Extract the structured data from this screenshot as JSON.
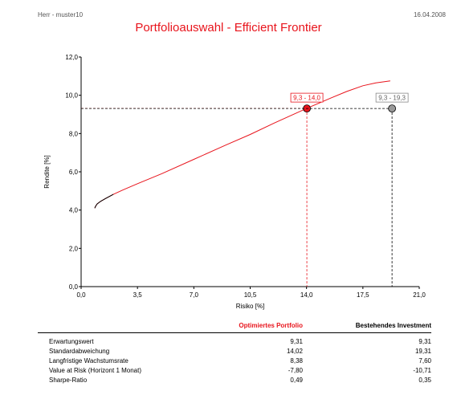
{
  "header": {
    "left": "Herr - muster10",
    "right": "16.04.2008"
  },
  "title": "Portfolioauswahl - Efficient Frontier",
  "chart_data": {
    "type": "line",
    "xlabel": "Risiko [%]",
    "ylabel": "Rendite [%]",
    "xlim": [
      0,
      21
    ],
    "ylim": [
      0,
      12
    ],
    "xticks": [
      "0,0",
      "3,5",
      "7,0",
      "10,5",
      "14,0",
      "17,5",
      "21,0"
    ],
    "yticks": [
      "0,0",
      "2,0",
      "4,0",
      "6,0",
      "8,0",
      "10,0",
      "12,0"
    ],
    "grid": false,
    "series": [
      {
        "color": "#e8141c",
        "x": [
          0.85,
          0.9,
          1.0,
          1.2,
          1.5,
          2.0,
          2.6,
          3.5,
          5.0,
          7.0,
          9.0,
          10.5,
          12.0,
          14.0,
          15.5,
          16.5,
          17.5,
          18.3,
          19.2
        ],
        "y": [
          4.1,
          4.2,
          4.32,
          4.45,
          4.6,
          4.82,
          5.05,
          5.38,
          5.9,
          6.65,
          7.4,
          7.95,
          8.55,
          9.31,
          9.85,
          10.2,
          10.5,
          10.65,
          10.75
        ]
      }
    ],
    "markers": [
      {
        "label": "9,3 - 14,0",
        "x": 14.02,
        "y": 9.31,
        "color": "#e8141c"
      },
      {
        "label": "9,3 - 19,3",
        "x": 19.31,
        "y": 9.31,
        "color": "#999999"
      }
    ]
  },
  "table": {
    "col_opt": "Optimiertes Portfolio",
    "col_inv": "Bestehendes Investment",
    "rows": [
      {
        "label": "Erwartungswert",
        "opt": "9,31",
        "inv": "9,31"
      },
      {
        "label": "Standardabweichung",
        "opt": "14,02",
        "inv": "19,31"
      },
      {
        "label": "Langfristige Wachstumsrate",
        "opt": "8,38",
        "inv": "7,60"
      },
      {
        "label": "Value at Risk (Horizont 1 Monat)",
        "opt": "-7,80",
        "inv": "-10,71"
      },
      {
        "label": "Sharpe-Ratio",
        "opt": "0,49",
        "inv": "0,35"
      }
    ]
  }
}
